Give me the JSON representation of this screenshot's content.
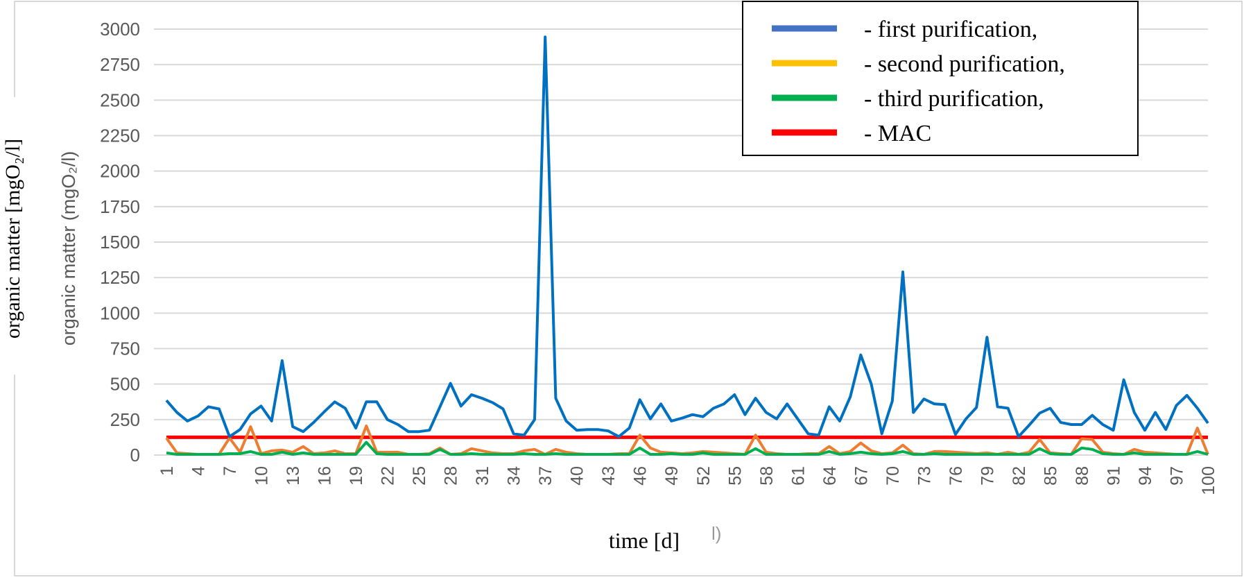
{
  "chart_data": {
    "type": "line",
    "xlabel": "time [d]",
    "ylabel_outer": "organic matter [mgO₂/l]",
    "ylabel_inner": "organic matter (mgO₂/l)",
    "stray_label": "l)",
    "ylim": [
      0,
      3000
    ],
    "yticks": [
      0,
      250,
      500,
      750,
      1000,
      1250,
      1500,
      1750,
      2000,
      2250,
      2500,
      2750,
      3000
    ],
    "xticks": [
      1,
      4,
      7,
      10,
      13,
      16,
      19,
      22,
      25,
      28,
      31,
      34,
      37,
      40,
      43,
      46,
      49,
      52,
      55,
      58,
      61,
      64,
      67,
      70,
      73,
      76,
      79,
      82,
      85,
      88,
      91,
      94,
      97,
      100
    ],
    "grid": "horizontal",
    "legend_position": "top-right",
    "legend": [
      {
        "label": "- first purification,",
        "color": "#4472C4"
      },
      {
        "label": "- second purification,",
        "color": "#FFC000"
      },
      {
        "label": "- third purification,",
        "color": "#00B050"
      },
      {
        "label": "- MAC",
        "color": "#FF0000"
      }
    ],
    "series": [
      {
        "color": "#0070C0",
        "values": [
          385,
          300,
          240,
          275,
          340,
          325,
          130,
          180,
          290,
          345,
          240,
          665,
          200,
          165,
          230,
          305,
          375,
          330,
          190,
          375,
          375,
          250,
          215,
          165,
          165,
          175,
          340,
          505,
          345,
          425,
          400,
          370,
          325,
          150,
          140,
          250,
          2945,
          400,
          240,
          175,
          180,
          180,
          170,
          130,
          190,
          390,
          255,
          360,
          240,
          260,
          285,
          270,
          330,
          360,
          425,
          285,
          400,
          300,
          255,
          360,
          255,
          150,
          140,
          340,
          240,
          410,
          705,
          500,
          150,
          380,
          1290,
          300,
          395,
          360,
          355,
          145,
          255,
          335,
          830,
          340,
          330,
          130,
          210,
          295,
          330,
          230,
          215,
          215,
          280,
          215,
          175,
          530,
          300,
          175,
          300,
          180,
          350,
          420,
          330,
          225
        ]
      },
      {
        "color": "#ED7D31",
        "values": [
          120,
          15,
          10,
          5,
          5,
          5,
          120,
          20,
          200,
          10,
          30,
          35,
          20,
          60,
          10,
          15,
          30,
          10,
          10,
          205,
          20,
          20,
          20,
          5,
          5,
          10,
          50,
          5,
          10,
          45,
          30,
          15,
          10,
          10,
          30,
          40,
          5,
          40,
          20,
          10,
          5,
          5,
          5,
          10,
          10,
          140,
          50,
          20,
          15,
          10,
          15,
          25,
          20,
          15,
          10,
          5,
          140,
          20,
          10,
          5,
          5,
          10,
          10,
          60,
          10,
          25,
          85,
          30,
          10,
          15,
          70,
          10,
          5,
          25,
          25,
          20,
          15,
          10,
          15,
          5,
          20,
          5,
          20,
          110,
          15,
          10,
          5,
          115,
          110,
          20,
          10,
          5,
          40,
          20,
          15,
          10,
          5,
          5,
          190,
          5
        ]
      },
      {
        "color": "#00B050",
        "values": [
          15,
          5,
          5,
          5,
          5,
          5,
          10,
          10,
          25,
          5,
          5,
          20,
          5,
          15,
          5,
          5,
          5,
          5,
          5,
          90,
          10,
          5,
          5,
          5,
          5,
          5,
          40,
          5,
          5,
          10,
          5,
          5,
          5,
          5,
          10,
          5,
          5,
          10,
          5,
          5,
          5,
          5,
          5,
          5,
          5,
          50,
          5,
          5,
          10,
          5,
          5,
          15,
          5,
          5,
          5,
          5,
          45,
          5,
          5,
          5,
          5,
          5,
          5,
          25,
          5,
          10,
          20,
          10,
          5,
          10,
          25,
          5,
          5,
          10,
          5,
          5,
          5,
          5,
          5,
          5,
          5,
          5,
          5,
          45,
          10,
          5,
          5,
          50,
          40,
          10,
          5,
          5,
          15,
          5,
          5,
          5,
          5,
          5,
          25,
          5
        ]
      },
      {
        "name": "MAC",
        "color": "#FF0000",
        "constant": 125
      }
    ]
  }
}
